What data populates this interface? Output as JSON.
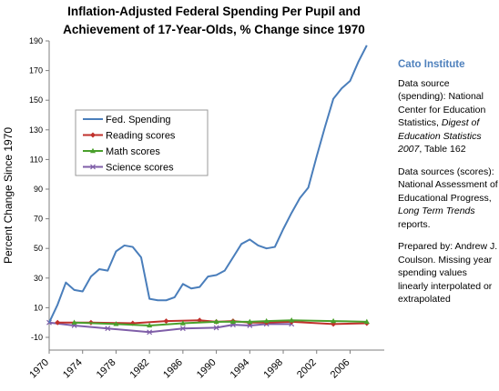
{
  "chart_data": {
    "type": "line",
    "title_line1": "Inflation-Adjusted Federal Spending Per Pupil and",
    "title_line2": "Achievement of 17-Year-Olds, % Change since 1970",
    "ylabel": "Percent Change Since 1970",
    "xlabel": "",
    "ylim": [
      -10,
      190
    ],
    "xlim": [
      1970,
      2009
    ],
    "yticks": [
      -10,
      10,
      30,
      50,
      70,
      90,
      110,
      130,
      150,
      170,
      190
    ],
    "xticks": [
      1970,
      1974,
      1978,
      1982,
      1986,
      1990,
      1994,
      1998,
      2002,
      2006
    ],
    "grid": false,
    "legend_position": "upper-left",
    "series": [
      {
        "name": "Fed. Spending",
        "color": "#4a7ebb",
        "marker": "none",
        "x": [
          1970,
          1971,
          1972,
          1973,
          1974,
          1975,
          1976,
          1977,
          1978,
          1979,
          1980,
          1981,
          1982,
          1983,
          1984,
          1985,
          1986,
          1987,
          1988,
          1989,
          1990,
          1991,
          1992,
          1993,
          1994,
          1995,
          1996,
          1997,
          1998,
          1999,
          2000,
          2001,
          2002,
          2003,
          2004,
          2005,
          2006,
          2007,
          2008
        ],
        "y": [
          0,
          12,
          27,
          22,
          21,
          31,
          36,
          35,
          48,
          52,
          51,
          44,
          16,
          15,
          15,
          17,
          26,
          23,
          24,
          31,
          32,
          35,
          44,
          53,
          56,
          52,
          50,
          51,
          63,
          74,
          84,
          91,
          112,
          132,
          151,
          158,
          163,
          176,
          187
        ]
      },
      {
        "name": "Reading scores",
        "color": "#c0302b",
        "marker": "diamond",
        "x": [
          1971,
          1975,
          1980,
          1984,
          1988,
          1990,
          1992,
          1994,
          1996,
          1999,
          2004,
          2008
        ],
        "y": [
          0,
          0,
          -0.5,
          1,
          1.5,
          0.5,
          1,
          0,
          0,
          0.5,
          -1,
          -0.5
        ]
      },
      {
        "name": "Math scores",
        "color": "#4aa02c",
        "marker": "triangle",
        "x": [
          1973,
          1978,
          1982,
          1986,
          1990,
          1992,
          1994,
          1996,
          1999,
          2004,
          2008
        ],
        "y": [
          0,
          -1,
          -2,
          -0.5,
          0.5,
          0.5,
          0.5,
          1,
          1.5,
          1,
          0.5
        ]
      },
      {
        "name": "Science scores",
        "color": "#7f5ea8",
        "marker": "x",
        "x": [
          1970,
          1973,
          1977,
          1982,
          1986,
          1990,
          1992,
          1994,
          1996,
          1999
        ],
        "y": [
          0,
          -2,
          -4,
          -6.5,
          -4,
          -3.5,
          -1.5,
          -2,
          -1,
          -1
        ]
      }
    ]
  },
  "side_panel": {
    "org": "Cato Institute",
    "spending_source_1": "Data source (spending): National Center for Education Statistics, ",
    "spending_source_italic": "Digest of Education Statistics 2007",
    "spending_source_2": ", Table 162",
    "scores_source_1": "Data sources (scores): National Assessment of Educational Progress, ",
    "scores_source_italic": "Long Term Trends",
    "scores_source_2": " reports.",
    "prepared": "Prepared by: Andrew J. Coulson. Missing year spending values linearly interpolated or extrapolated"
  }
}
